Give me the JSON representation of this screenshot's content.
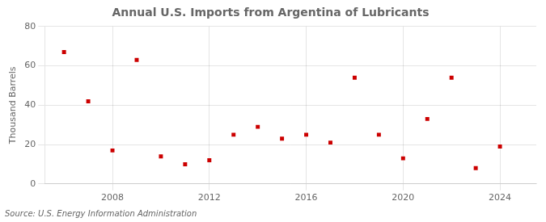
{
  "chart_data": {
    "type": "scatter",
    "title": "Annual U.S. Imports from Argentina of Lubricants",
    "ylabel": "Thousand Barrels",
    "annotations": [
      "Source: U.S. Energy Information Administration"
    ],
    "x": [
      2006,
      2007,
      2008,
      2009,
      2010,
      2011,
      2012,
      2013,
      2014,
      2015,
      2016,
      2017,
      2018,
      2019,
      2020,
      2021,
      2022,
      2023,
      2024
    ],
    "values": [
      67,
      42,
      17,
      63,
      14,
      10,
      12,
      25,
      29,
      23,
      25,
      21,
      54,
      25,
      13,
      33,
      54,
      8,
      19
    ],
    "color": "#cc0000",
    "marker": "square",
    "xlim": [
      2005.2,
      2025.5
    ],
    "xticks": [
      2008,
      2012,
      2016,
      2020,
      2024
    ],
    "ylim": [
      0,
      80
    ],
    "yticks": [
      0,
      20,
      40,
      60,
      80
    ],
    "grid": true
  }
}
